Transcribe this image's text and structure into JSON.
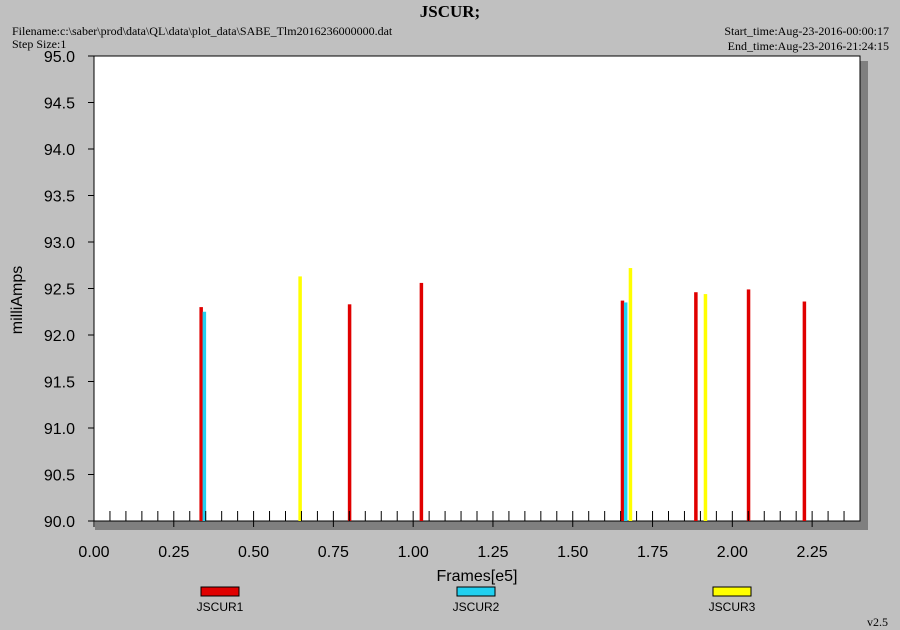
{
  "header": {
    "title": "JSCUR;",
    "filename": "Filename:c:\\saber\\prod\\data\\QL\\data\\plot_data\\SABE_Tlm2016236000000.dat",
    "step_size": "Step Size:1",
    "start_time": "Start_time:Aug-23-2016-00:00:17",
    "end_time": "End_time:Aug-23-2016-21:24:15"
  },
  "version": "v2.5",
  "chart_data": {
    "type": "bar",
    "xlabel": "Frames[e5]",
    "ylabel": "milliAmps",
    "xlim": [
      0.0,
      2.4
    ],
    "ylim": [
      90.0,
      95.0
    ],
    "xticks": [
      "0.00",
      "0.25",
      "0.50",
      "0.75",
      "1.00",
      "1.25",
      "1.50",
      "1.75",
      "2.00",
      "2.25"
    ],
    "yticks": [
      "90.0",
      "90.5",
      "91.0",
      "91.5",
      "92.0",
      "92.5",
      "93.0",
      "93.5",
      "94.0",
      "94.5",
      "95.0"
    ],
    "grid": false,
    "legend_placement": "bottom",
    "series": [
      {
        "name": "JSCUR1",
        "color": "#e00000",
        "x": [
          0.335,
          0.8,
          1.025,
          1.655,
          1.885,
          2.05,
          2.225
        ],
        "y": [
          92.3,
          92.33,
          92.56,
          92.37,
          92.46,
          92.49,
          92.36
        ]
      },
      {
        "name": "JSCUR2",
        "color": "#20d0f0",
        "x": [
          0.345,
          1.665
        ],
        "y": [
          92.25,
          92.35
        ]
      },
      {
        "name": "JSCUR3",
        "color": "#ffff00",
        "x": [
          0.645,
          1.68,
          1.915
        ],
        "y": [
          92.63,
          92.72,
          92.44
        ]
      }
    ]
  }
}
